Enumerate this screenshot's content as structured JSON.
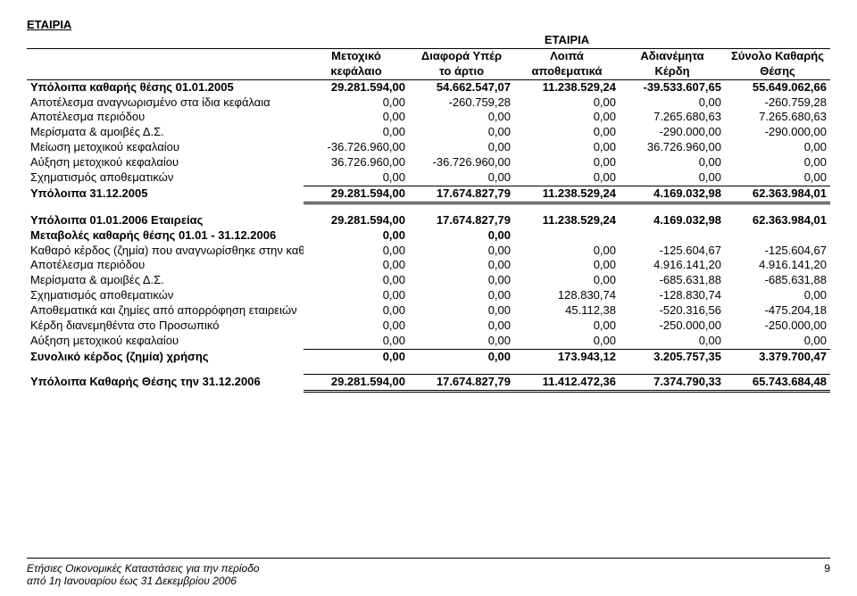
{
  "topLabel": "ΕΤΑΙΡΙΑ",
  "centerTitle": "ΕΤΑΙΡΙΑ",
  "headers": {
    "c1a": "Μετοχικό",
    "c1b": "κεφάλαιο",
    "c2a": "Διαφορά Υπέρ",
    "c2b": "το άρτιο",
    "c3a": "Λοιπά",
    "c3b": "αποθεματικά",
    "c4a": "Αδιανέμητα",
    "c4b": "Κέρδη",
    "c5a": "Σύνολο Καθαρής",
    "c5b": "Θέσης"
  },
  "rows1": [
    {
      "label": "Υπόλοιπα καθαρής θέσης 01.01.2005",
      "v": [
        "29.281.594,00",
        "54.662.547,07",
        "11.238.529,24",
        "-39.533.607,65",
        "55.649.062,66"
      ],
      "bold": true
    },
    {
      "label": "Αποτέλεσμα αναγνωρισμένο στα ίδια κεφάλαια",
      "v": [
        "0,00",
        "-260.759,28",
        "0,00",
        "0,00",
        "-260.759,28"
      ]
    },
    {
      "label": "Αποτέλεσμα περιόδου",
      "v": [
        "0,00",
        "0,00",
        "0,00",
        "7.265.680,63",
        "7.265.680,63"
      ]
    },
    {
      "label": "Μερίσματα & αμοιβές Δ.Σ.",
      "v": [
        "0,00",
        "0,00",
        "0,00",
        "-290.000,00",
        "-290.000,00"
      ]
    },
    {
      "label": "Μείωση μετοχικού κεφαλαίου",
      "v": [
        "-36.726.960,00",
        "0,00",
        "0,00",
        "36.726.960,00",
        "0,00"
      ]
    },
    {
      "label": "Αύξηση μετοχικού κεφαλαίου",
      "v": [
        "36.726.960,00",
        "-36.726.960,00",
        "0,00",
        "0,00",
        "0,00"
      ]
    },
    {
      "label": "Σχηματισμός αποθεματικών",
      "v": [
        "0,00",
        "0,00",
        "0,00",
        "0,00",
        "0,00"
      ]
    }
  ],
  "total1": {
    "label": "Υπόλοιπα 31.12.2005",
    "v": [
      "29.281.594,00",
      "17.674.827,79",
      "11.238.529,24",
      "4.169.032,98",
      "62.363.984,01"
    ]
  },
  "rows2head": {
    "label": "Υπόλοιπα 01.01.2006  Εταιρείας",
    "v": [
      "29.281.594,00",
      "17.674.827,79",
      "11.238.529,24",
      "4.169.032,98",
      "62.363.984,01"
    ]
  },
  "rows2": [
    {
      "label": "Μεταβολές καθαρής θέσης 01.01 - 31.12.2006",
      "v": [
        "0,00",
        "0,00",
        "",
        "",
        ""
      ],
      "bold": true
    },
    {
      "label": "Καθαρό κέρδος (ζημία) που αναγνωρίσθηκε στην καθαρ",
      "v": [
        "0,00",
        "0,00",
        "0,00",
        "-125.604,67",
        "-125.604,67"
      ]
    },
    {
      "label": "Αποτέλεσμα περιόδου",
      "v": [
        "0,00",
        "0,00",
        "0,00",
        "4.916.141,20",
        "4.916.141,20"
      ]
    },
    {
      "label": "Μερίσματα & αμοιβές Δ.Σ.",
      "v": [
        "0,00",
        "0,00",
        "0,00",
        "-685.631,88",
        "-685.631,88"
      ]
    },
    {
      "label": "Σχηματισμός αποθεματικών",
      "v": [
        "0,00",
        "0,00",
        "128.830,74",
        "-128.830,74",
        "0,00"
      ]
    },
    {
      "label": "Αποθεματικά  και ζημίες από απορρόφηση εταιρειών",
      "v": [
        "0,00",
        "0,00",
        "45.112,38",
        "-520.316,56",
        "-475.204,18"
      ]
    },
    {
      "label": "Κέρδη διανεμηθέντα στο Προσωπικό",
      "v": [
        "0,00",
        "0,00",
        "0,00",
        "-250.000,00",
        "-250.000,00"
      ]
    },
    {
      "label": "Αύξηση μετοχικού κεφαλαίου",
      "v": [
        "0,00",
        "0,00",
        "0,00",
        "0,00",
        "0,00"
      ]
    }
  ],
  "subtotal2": {
    "label": "Συνολικό κέρδος (ζημία) χρήσης",
    "v": [
      "0,00",
      "0,00",
      "173.943,12",
      "3.205.757,35",
      "3.379.700,47"
    ]
  },
  "total2": {
    "label": "Υπόλοιπα Καθαρής Θέσης την 31.12.2006",
    "v": [
      "29.281.594,00",
      "17.674.827,79",
      "11.412.472,36",
      "7.374.790,33",
      "65.743.684,48"
    ]
  },
  "footer": {
    "line1": "Ετήσιες Οικονομικές Καταστάσεις για την  περίοδο",
    "line2": "από 1η Ιανουαρίου έως 31 Δεκεμβρίου 2006",
    "page": "9"
  }
}
